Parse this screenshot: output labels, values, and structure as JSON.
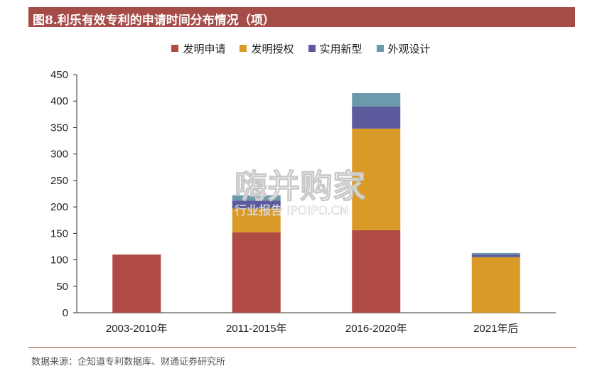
{
  "title": "图8.利乐有效专利的申请时间分布情况（项）",
  "source": "数据来源：企知道专利数据库、财通证券研究所",
  "watermark": {
    "main": "嗨并购家",
    "sub": "行业报告 IPOIPO.CN"
  },
  "chart_data": {
    "type": "bar",
    "stacked": true,
    "categories": [
      "2003-2010年",
      "2011-2015年",
      "2016-2020年",
      "2021年后"
    ],
    "series": [
      {
        "name": "发明申请",
        "color": "#b04a45",
        "values": [
          110,
          152,
          156,
          0
        ]
      },
      {
        "name": "发明授权",
        "color": "#d99a28",
        "values": [
          0,
          45,
          192,
          105
        ]
      },
      {
        "name": "实用新型",
        "color": "#5c5a9c",
        "values": [
          0,
          15,
          42,
          5
        ]
      },
      {
        "name": "外观设计",
        "color": "#6a9aac",
        "values": [
          0,
          10,
          25,
          3
        ]
      }
    ],
    "ylim": [
      0,
      450
    ],
    "yticks": [
      0,
      50,
      100,
      150,
      200,
      250,
      300,
      350,
      400,
      450
    ],
    "legend_position": "top-center",
    "grid": false
  }
}
